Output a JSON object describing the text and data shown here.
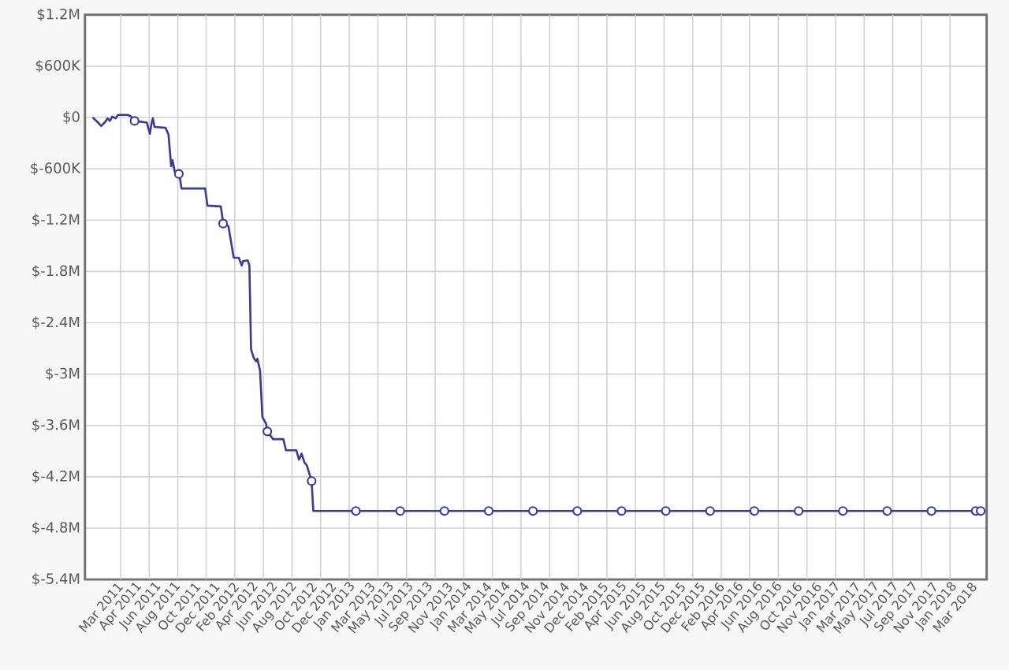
{
  "chart_data": {
    "type": "line",
    "xlim": [
      "2010-11-22",
      "2018-04-23"
    ],
    "ylim": [
      -5400000,
      1200000
    ],
    "yticks": [
      {
        "value": 1200000,
        "label": "$1.2M"
      },
      {
        "value": 600000,
        "label": "$600K"
      },
      {
        "value": 0,
        "label": "$0"
      },
      {
        "value": -600000,
        "label": "$-600K"
      },
      {
        "value": -1200000,
        "label": "$-1.2M"
      },
      {
        "value": -1800000,
        "label": "$-1.8M"
      },
      {
        "value": -2400000,
        "label": "$-2.4M"
      },
      {
        "value": -3000000,
        "label": "$-3M"
      },
      {
        "value": -3600000,
        "label": "$-3.6M"
      },
      {
        "value": -4200000,
        "label": "$-4.2M"
      },
      {
        "value": -4800000,
        "label": "$-4.8M"
      },
      {
        "value": -5400000,
        "label": "$-5.4M"
      }
    ],
    "xticks": [
      {
        "value": "2011-03-03",
        "label": "Mar 2011"
      },
      {
        "value": "2011-04-30",
        "label": "Apr 2011"
      },
      {
        "value": "2011-06-27",
        "label": "Jun 2011"
      },
      {
        "value": "2011-08-24",
        "label": "Aug 2011"
      },
      {
        "value": "2011-10-22",
        "label": "Oct 2011"
      },
      {
        "value": "2011-12-19",
        "label": "Dec 2011"
      },
      {
        "value": "2012-02-15",
        "label": "Feb 2012"
      },
      {
        "value": "2012-04-14",
        "label": "Apr 2012"
      },
      {
        "value": "2012-06-11",
        "label": "Jun 2012"
      },
      {
        "value": "2012-08-08",
        "label": "Aug 2012"
      },
      {
        "value": "2012-10-06",
        "label": "Oct 2012"
      },
      {
        "value": "2012-12-03",
        "label": "Dec 2012"
      },
      {
        "value": "2013-01-30",
        "label": "Jan 2013"
      },
      {
        "value": "2013-03-30",
        "label": "Mar 2013"
      },
      {
        "value": "2013-05-27",
        "label": "May 2013"
      },
      {
        "value": "2013-07-24",
        "label": "Jul 2013"
      },
      {
        "value": "2013-09-21",
        "label": "Sep 2013"
      },
      {
        "value": "2013-11-18",
        "label": "Nov 2013"
      },
      {
        "value": "2014-01-15",
        "label": "Jan 2014"
      },
      {
        "value": "2014-03-15",
        "label": "Mar 2014"
      },
      {
        "value": "2014-05-12",
        "label": "May 2014"
      },
      {
        "value": "2014-07-09",
        "label": "Jul 2014"
      },
      {
        "value": "2014-09-06",
        "label": "Sep 2014"
      },
      {
        "value": "2014-11-03",
        "label": "Nov 2014"
      },
      {
        "value": "2014-12-31",
        "label": "Dec 2014"
      },
      {
        "value": "2015-02-28",
        "label": "Feb 2015"
      },
      {
        "value": "2015-04-27",
        "label": "Apr 2015"
      },
      {
        "value": "2015-06-24",
        "label": "Jun 2015"
      },
      {
        "value": "2015-08-21",
        "label": "Aug 2015"
      },
      {
        "value": "2015-10-19",
        "label": "Oct 2015"
      },
      {
        "value": "2015-12-16",
        "label": "Dec 2015"
      },
      {
        "value": "2016-02-12",
        "label": "Feb 2016"
      },
      {
        "value": "2016-04-11",
        "label": "Apr 2016"
      },
      {
        "value": "2016-06-08",
        "label": "Jun 2016"
      },
      {
        "value": "2016-08-05",
        "label": "Aug 2016"
      },
      {
        "value": "2016-10-03",
        "label": "Oct 2016"
      },
      {
        "value": "2016-11-30",
        "label": "Nov 2016"
      },
      {
        "value": "2017-01-27",
        "label": "Jan 2017"
      },
      {
        "value": "2017-03-27",
        "label": "Mar 2017"
      },
      {
        "value": "2017-05-24",
        "label": "May 2017"
      },
      {
        "value": "2017-07-21",
        "label": "Jul 2017"
      },
      {
        "value": "2017-09-18",
        "label": "Sep 2017"
      },
      {
        "value": "2017-11-15",
        "label": "Nov 2017"
      },
      {
        "value": "2018-01-12",
        "label": "Jan 2018"
      },
      {
        "value": "2018-03-12",
        "label": "Mar 2018"
      },
      {
        "value": "2011-03-09",
        "label": null
      },
      {
        "value": "2011-06-03",
        "label": null
      },
      {
        "value": "2011-08-28",
        "label": null
      },
      {
        "value": "2011-11-21",
        "label": null
      },
      {
        "value": "2012-02-15",
        "label": null
      },
      {
        "value": "2012-05-11",
        "label": null
      },
      {
        "value": "2012-08-05",
        "label": null
      },
      {
        "value": "2012-10-30",
        "label": null
      },
      {
        "value": "2013-01-24",
        "label": null
      },
      {
        "value": "2013-04-20",
        "label": null
      },
      {
        "value": "2013-07-15",
        "label": null
      },
      {
        "value": "2013-10-09",
        "label": null
      },
      {
        "value": "2014-01-03",
        "label": null
      },
      {
        "value": "2014-03-30",
        "label": null
      },
      {
        "value": "2014-06-24",
        "label": null
      },
      {
        "value": "2014-09-18",
        "label": null
      },
      {
        "value": "2014-12-13",
        "label": null
      },
      {
        "value": "2015-03-09",
        "label": null
      },
      {
        "value": "2015-06-03",
        "label": null
      },
      {
        "value": "2015-08-28",
        "label": null
      },
      {
        "value": "2015-11-22",
        "label": null
      },
      {
        "value": "2016-02-16",
        "label": null
      },
      {
        "value": "2016-05-11",
        "label": null
      },
      {
        "value": "2016-08-05",
        "label": null
      },
      {
        "value": "2016-10-30",
        "label": null
      },
      {
        "value": "2017-01-24",
        "label": null
      },
      {
        "value": "2017-04-20",
        "label": null
      },
      {
        "value": "2017-07-15",
        "label": null
      },
      {
        "value": "2017-10-09",
        "label": null
      },
      {
        "value": "2018-01-03",
        "label": null
      }
    ],
    "grid": true,
    "series": [
      {
        "color": "#3c3c96",
        "x": [
          "2010-12-15",
          "2010-12-29",
          "2011-01-10",
          "2011-01-22",
          "2011-01-29",
          "2011-02-05",
          "2011-02-12",
          "2011-02-22",
          "2011-03-01",
          "2011-03-31",
          "2011-04-10",
          "2011-04-20",
          "2011-05-27",
          "2011-06-05",
          "2011-06-10",
          "2011-06-14",
          "2011-06-19",
          "2011-07-22",
          "2011-07-31",
          "2011-08-08",
          "2011-08-12",
          "2011-08-19",
          "2011-08-31",
          "2011-09-03",
          "2011-09-08",
          "2011-11-18",
          "2011-11-25",
          "2012-01-04",
          "2012-01-08",
          "2012-01-11",
          "2012-01-27",
          "2012-02-12",
          "2012-02-27",
          "2012-03-07",
          "2012-03-11",
          "2012-03-25",
          "2012-03-30",
          "2012-04-04",
          "2012-04-12",
          "2012-04-19",
          "2012-04-23",
          "2012-05-01",
          "2012-05-08",
          "2012-05-19",
          "2012-05-23",
          "2012-06-09",
          "2012-07-10",
          "2012-07-18",
          "2012-08-18",
          "2012-08-26",
          "2012-09-03",
          "2012-09-11",
          "2012-09-19",
          "2012-10-03",
          "2012-10-08",
          "2018-04-05"
        ],
        "values": [
          0,
          -50000,
          -100000,
          -50000,
          -10000,
          -40000,
          10000,
          -10000,
          30000,
          30000,
          10000,
          -40000,
          -60000,
          -190000,
          -70000,
          -10000,
          -110000,
          -120000,
          -200000,
          -570000,
          -500000,
          -640000,
          -660000,
          -700000,
          -830000,
          -830000,
          -1030000,
          -1040000,
          -1140000,
          -1240000,
          -1270000,
          -1640000,
          -1640000,
          -1730000,
          -1680000,
          -1670000,
          -1730000,
          -2710000,
          -2810000,
          -2850000,
          -2820000,
          -2960000,
          -3500000,
          -3580000,
          -3670000,
          -3760000,
          -3760000,
          -3890000,
          -3890000,
          -4000000,
          -3930000,
          -4030000,
          -4070000,
          -4250000,
          -4600000,
          -4600000
        ]
      },
      {
        "type": "scatter",
        "color": "#3c3c96",
        "marker": "circle",
        "x": [
          "2011-04-20",
          "2011-08-31",
          "2012-01-11",
          "2012-05-23",
          "2012-10-03",
          "2013-02-13",
          "2013-06-26",
          "2013-11-06",
          "2014-03-19",
          "2014-07-30",
          "2014-12-10",
          "2015-04-22",
          "2015-09-02",
          "2016-01-13",
          "2016-05-25",
          "2016-10-05",
          "2017-02-15",
          "2017-06-28",
          "2017-11-08",
          "2018-03-21",
          "2018-04-05"
        ],
        "values": [
          -40000,
          -660000,
          -1240000,
          -3670000,
          -4250000,
          -4600000,
          -4600000,
          -4600000,
          -4600000,
          -4600000,
          -4600000,
          -4600000,
          -4600000,
          -4600000,
          -4600000,
          -4600000,
          -4600000,
          -4600000,
          -4600000,
          -4600000,
          -4600000
        ]
      }
    ]
  }
}
